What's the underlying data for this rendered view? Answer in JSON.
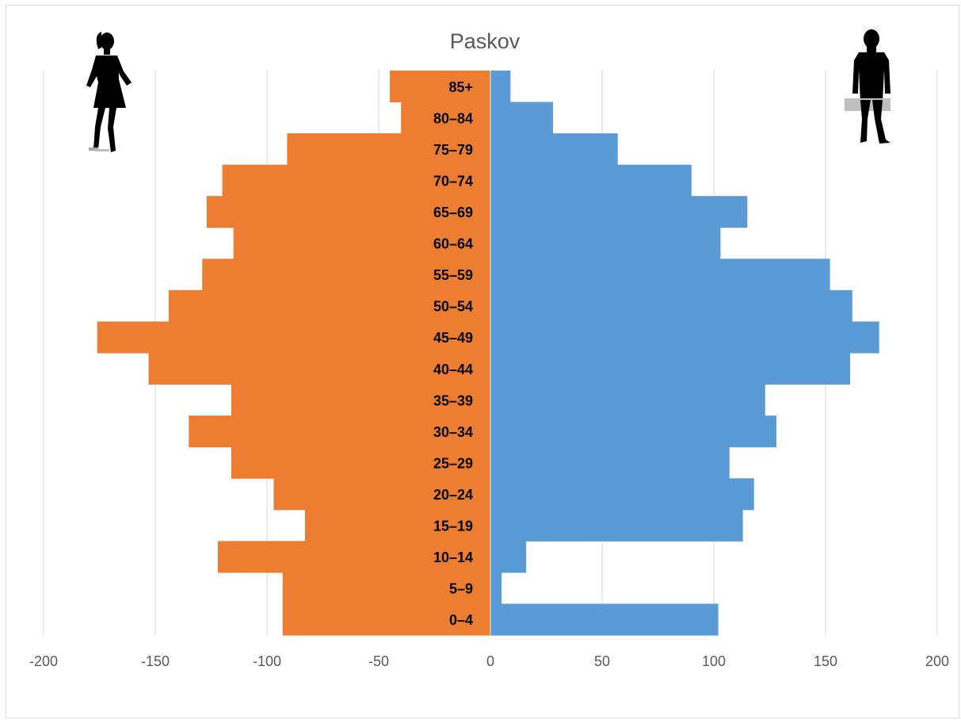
{
  "chart_data": {
    "type": "bar",
    "orientation": "horizontal",
    "title": "Paskov",
    "categories": [
      "0–4",
      "5–9",
      "10–14",
      "15–19",
      "20–24",
      "25–29",
      "30–34",
      "35–39",
      "40–44",
      "45–49",
      "50–54",
      "55–59",
      "60–64",
      "65–69",
      "70–74",
      "75–79",
      "80–84",
      "85+"
    ],
    "series": [
      {
        "values": [
          -93,
          -93,
          -122,
          -83,
          -97,
          -116,
          -135,
          -116,
          -153,
          -176,
          -144,
          -129,
          -115,
          -127,
          -120,
          -91,
          -40,
          -45
        ]
      },
      {
        "values": [
          102,
          5,
          16,
          113,
          118,
          107,
          128,
          123,
          161,
          174,
          162,
          152,
          103,
          115,
          90,
          57,
          28,
          9
        ]
      }
    ],
    "xlim": [
      -200,
      200
    ],
    "xticks": [
      "-200",
      "-150",
      "-100",
      "-50",
      "0",
      "50",
      "100",
      "150",
      "200"
    ],
    "grid": true,
    "legend": "none",
    "colors": {
      "left": "#ED7D31",
      "right": "#5B9BD5",
      "grid": "#D9D9D9",
      "center_line": "#BFBFBF"
    }
  },
  "icons": {
    "left": "woman-silhouette-icon",
    "right": "man-silhouette-icon"
  }
}
